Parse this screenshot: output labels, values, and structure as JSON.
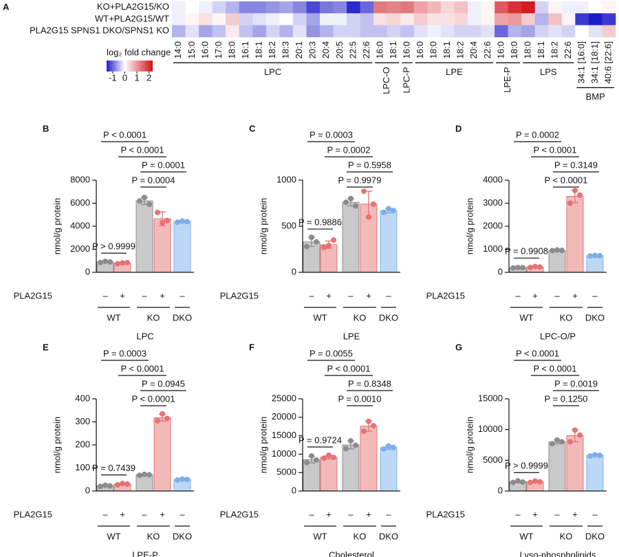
{
  "chart_data": [
    {
      "type": "heatmap",
      "panel": "A",
      "rows": [
        "KO+PLA2G15/KO",
        "WT+PLA2G15/WT",
        "PLA2G15 SPNS1 DKO/SPNS1 KO"
      ],
      "groups": [
        {
          "name": "LPC",
          "columns": [
            "14:0",
            "15:0",
            "16:0",
            "17:0",
            "18:0",
            "16:1",
            "18:1",
            "18:2",
            "18:3",
            "20:1",
            "20:3",
            "20:4",
            "20:5",
            "22:5",
            "22:6"
          ],
          "values": [
            [
              -0.1,
              0.0,
              -0.1,
              -0.3,
              -0.5,
              -0.8,
              -0.8,
              -0.7,
              -0.6,
              -0.8,
              -1.2,
              -0.9,
              -0.8,
              -1.4,
              -1.0
            ],
            [
              -0.1,
              0.1,
              0.3,
              0.1,
              0.5,
              -0.3,
              -0.2,
              -0.1,
              0.0,
              -0.3,
              -0.6,
              -0.1,
              -0.1,
              -0.3,
              -0.4
            ],
            [
              -0.5,
              -0.2,
              -0.6,
              -0.4,
              0.2,
              -0.4,
              -0.6,
              -0.3,
              -0.5,
              -0.2,
              -0.7,
              -0.5,
              -0.3,
              -0.3,
              -0.4
            ]
          ]
        },
        {
          "name": "LPC-O",
          "columns": [
            "16:0",
            "18:1"
          ],
          "values": [
            [
              1.3,
              1.2
            ],
            [
              0.3,
              0.4
            ],
            [
              -0.4,
              -0.3
            ]
          ]
        },
        {
          "name": "LPC-P",
          "columns": [
            "16:0"
          ],
          "values": [
            [
              1.3
            ],
            [
              0.2
            ],
            [
              -0.4
            ]
          ]
        },
        {
          "name": "LPE",
          "columns": [
            "16:0",
            "18:0",
            "18:1",
            "18:2",
            "20:4",
            "22:6"
          ],
          "values": [
            [
              0.9,
              0.7,
              0.4,
              0.6,
              -0.1,
              0.1
            ],
            [
              0.5,
              0.3,
              0.3,
              0.4,
              -0.1,
              0.1
            ],
            [
              -0.2,
              -0.1,
              -0.2,
              -0.3,
              -0.3,
              -0.2
            ]
          ]
        },
        {
          "name": "LPE-P",
          "columns": [
            "16:0",
            "18:0"
          ],
          "values": [
            [
              1.6,
              2.0
            ],
            [
              0.9,
              1.0
            ],
            [
              -1.0,
              -0.5
            ]
          ]
        },
        {
          "name": "LPS",
          "columns": [
            "18:0",
            "18:1",
            "18:2",
            "22:6"
          ],
          "values": [
            [
              2.2,
              -0.3,
              0.1,
              -0.1
            ],
            [
              0.5,
              -0.5,
              0.6,
              0.1
            ],
            [
              -0.6,
              -0.3,
              -0.2,
              -0.3
            ]
          ]
        },
        {
          "name": "BMP",
          "columns": [
            "34:1 [16:0]",
            "34:1 [18:1]",
            "40:6 [22:6]"
          ],
          "values": [
            [
              -0.1,
              0.0,
              0.1
            ],
            [
              -1.3,
              -1.5,
              -1.3
            ],
            [
              0.0,
              -0.2,
              0.5
            ]
          ]
        }
      ],
      "colorbar": {
        "label": "log₂ fold change",
        "zlim": [
          -1.5,
          2.3
        ],
        "ticks": [
          -1,
          0,
          1,
          2
        ],
        "colors": [
          "#1c1cc8",
          "#ffffff",
          "#d01218"
        ]
      }
    },
    {
      "type": "bar",
      "panel": "B",
      "xlabel": "LPC",
      "ylabel": "nmol/g  protein",
      "ylim": [
        0,
        8000
      ],
      "yticks": [
        0,
        2000,
        4000,
        6000,
        8000
      ],
      "treatment_label": "PLA2G15",
      "treatment": [
        "–",
        "+",
        "–",
        "+",
        "–"
      ],
      "groups": [
        "WT",
        "KO",
        "DKO"
      ],
      "values": [
        900,
        800,
        6200,
        4650,
        4400
      ],
      "errors": [
        50,
        60,
        300,
        600,
        100
      ],
      "points": [
        [
          850,
          950,
          900
        ],
        [
          750,
          820,
          840
        ],
        [
          6200,
          6500,
          5900
        ],
        [
          5200,
          4300,
          4500
        ],
        [
          4350,
          4450,
          4400
        ]
      ],
      "p_values": [
        "P < 0.0001",
        "P < 0.0001",
        "P = 0.0001",
        "P = 0.0004",
        "P > 0.9999"
      ],
      "bar_colors": [
        "#c9c9c9",
        "#f3b9b9",
        "#c9c9c9",
        "#f3b9b9",
        "#bdd7f6"
      ],
      "point_colors": [
        "#8c8c8c",
        "#e57373",
        "#8c8c8c",
        "#e57373",
        "#7fadea"
      ]
    },
    {
      "type": "bar",
      "panel": "C",
      "xlabel": "LPE",
      "ylabel": "nmol/g  protein",
      "ylim": [
        0,
        1000
      ],
      "yticks": [
        0,
        500,
        1000
      ],
      "treatment_label": "PLA2G15",
      "treatment": [
        "–",
        "+",
        "–",
        "+",
        "–"
      ],
      "groups": [
        "WT",
        "KO",
        "DKO"
      ],
      "values": [
        330,
        300,
        760,
        740,
        670
      ],
      "errors": [
        50,
        40,
        40,
        140,
        25
      ],
      "points": [
        [
          280,
          380,
          330
        ],
        [
          270,
          290,
          350
        ],
        [
          760,
          800,
          720
        ],
        [
          880,
          600,
          740
        ],
        [
          650,
          690,
          670
        ]
      ],
      "p_values": [
        "P = 0.0003",
        "P = 0.0002",
        "P = 0.5958",
        "P = 0.9979",
        "P = 0.9886"
      ],
      "bar_colors": [
        "#c9c9c9",
        "#f3b9b9",
        "#c9c9c9",
        "#f3b9b9",
        "#bdd7f6"
      ],
      "point_colors": [
        "#8c8c8c",
        "#e57373",
        "#8c8c8c",
        "#e57373",
        "#7fadea"
      ]
    },
    {
      "type": "bar",
      "panel": "D",
      "xlabel": "LPC-O/P",
      "ylabel": "nmol/g  protein",
      "ylim": [
        0,
        4000
      ],
      "yticks": [
        0,
        1000,
        2000,
        3000,
        4000
      ],
      "treatment_label": "PLA2G15",
      "treatment": [
        "–",
        "+",
        "–",
        "+",
        "–"
      ],
      "groups": [
        "WT",
        "KO",
        "DKO"
      ],
      "values": [
        200,
        230,
        950,
        3300,
        720
      ],
      "errors": [
        20,
        30,
        20,
        280,
        10
      ],
      "points": [
        [
          190,
          210,
          200
        ],
        [
          210,
          250,
          230
        ],
        [
          940,
          970,
          950
        ],
        [
          3000,
          3550,
          3350
        ],
        [
          710,
          730,
          720
        ]
      ],
      "p_values": [
        "P = 0.0002",
        "P < 0.0001",
        "P = 0.3149",
        "P < 0.0001",
        "P = 0.9908"
      ],
      "bar_colors": [
        "#c9c9c9",
        "#f3b9b9",
        "#c9c9c9",
        "#f3b9b9",
        "#bdd7f6"
      ],
      "point_colors": [
        "#8c8c8c",
        "#e57373",
        "#8c8c8c",
        "#e57373",
        "#7fadea"
      ]
    },
    {
      "type": "bar",
      "panel": "E",
      "xlabel": "LPE-P",
      "ylabel": "nmol/g  protein",
      "ylim": [
        0,
        400
      ],
      "yticks": [
        0,
        100,
        200,
        300,
        400
      ],
      "treatment_label": "PLA2G15",
      "treatment": [
        "–",
        "+",
        "–",
        "+",
        "–"
      ],
      "groups": [
        "WT",
        "KO",
        "DKO"
      ],
      "values": [
        22,
        30,
        70,
        318,
        50
      ],
      "errors": [
        3,
        4,
        2,
        15,
        3
      ],
      "points": [
        [
          20,
          25,
          22
        ],
        [
          27,
          33,
          30
        ],
        [
          68,
          72,
          70
        ],
        [
          305,
          335,
          315
        ],
        [
          48,
          52,
          50
        ]
      ],
      "p_values": [
        "P = 0.0003",
        "P < 0.0001",
        "P = 0.0945",
        "P < 0.0001",
        "P = 0.7439"
      ],
      "bar_colors": [
        "#c9c9c9",
        "#f3b9b9",
        "#c9c9c9",
        "#f3b9b9",
        "#bdd7f6"
      ],
      "point_colors": [
        "#8c8c8c",
        "#e57373",
        "#8c8c8c",
        "#e57373",
        "#7fadea"
      ]
    },
    {
      "type": "bar",
      "panel": "F",
      "xlabel": "Cholesterol",
      "ylabel": "nmol/g  protein",
      "ylim": [
        0,
        25000
      ],
      "yticks": [
        0,
        5000,
        10000,
        15000,
        20000,
        25000
      ],
      "treatment_label": "PLA2G15",
      "treatment": [
        "–",
        "+",
        "–",
        "+",
        "–"
      ],
      "groups": [
        "WT",
        "KO",
        "DKO"
      ],
      "values": [
        8500,
        9200,
        12500,
        17600,
        11800
      ],
      "errors": [
        900,
        500,
        1100,
        1400,
        500
      ],
      "points": [
        [
          7700,
          9500,
          8400
        ],
        [
          8900,
          9700,
          9100
        ],
        [
          11500,
          13600,
          12400
        ],
        [
          16200,
          18900,
          17700
        ],
        [
          11400,
          12200,
          11800
        ]
      ],
      "p_values": [
        "P = 0.0055",
        "P < 0.0001",
        "P = 0.8348",
        "P = 0.0010",
        "P = 0.9724"
      ],
      "bar_colors": [
        "#c9c9c9",
        "#f3b9b9",
        "#c9c9c9",
        "#f3b9b9",
        "#bdd7f6"
      ],
      "point_colors": [
        "#8c8c8c",
        "#e57373",
        "#8c8c8c",
        "#e57373",
        "#7fadea"
      ]
    },
    {
      "type": "bar",
      "panel": "G",
      "xlabel": "Lyso-phospholipids",
      "ylabel": "nmol/g  protein",
      "ylim": [
        0,
        15000
      ],
      "yticks": [
        0,
        5000,
        10000,
        15000
      ],
      "treatment_label": "PLA2G15",
      "treatment": [
        "–",
        "+",
        "–",
        "+",
        "–"
      ],
      "groups": [
        "WT",
        "KO",
        "DKO"
      ],
      "values": [
        1500,
        1500,
        8000,
        9000,
        5800
      ],
      "errors": [
        150,
        120,
        300,
        1000,
        100
      ],
      "points": [
        [
          1400,
          1650,
          1450
        ],
        [
          1380,
          1620,
          1500
        ],
        [
          7700,
          8300,
          8000
        ],
        [
          8000,
          9900,
          9100
        ],
        [
          5700,
          5900,
          5800
        ]
      ],
      "p_values": [
        "P < 0.0001",
        "P < 0.0001",
        "P = 0.0019",
        "P = 0.1250",
        "P > 0.9999"
      ],
      "bar_colors": [
        "#c9c9c9",
        "#f3b9b9",
        "#c9c9c9",
        "#f3b9b9",
        "#bdd7f6"
      ],
      "point_colors": [
        "#8c8c8c",
        "#e57373",
        "#8c8c8c",
        "#e57373",
        "#7fadea"
      ]
    }
  ]
}
